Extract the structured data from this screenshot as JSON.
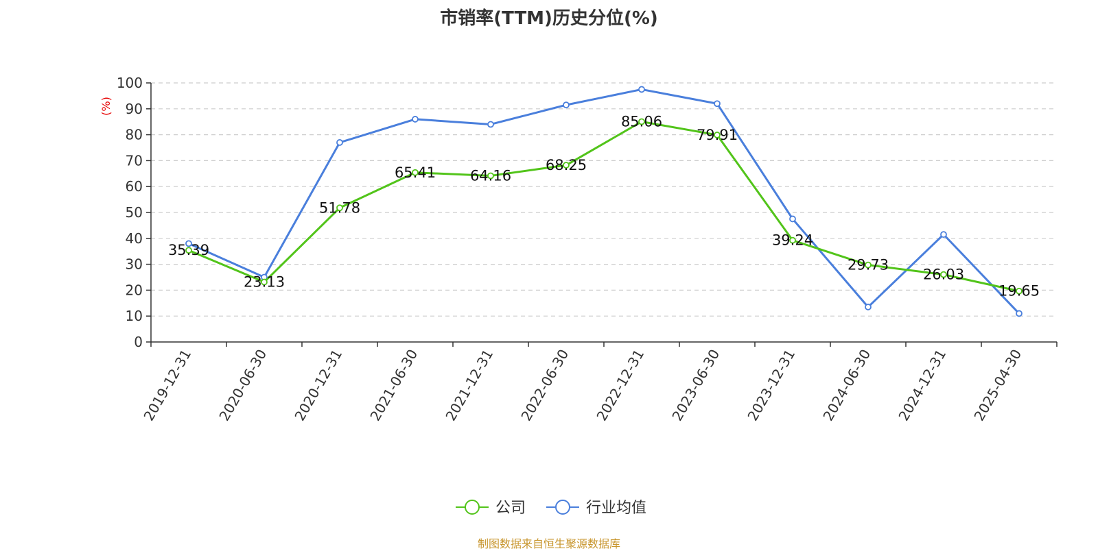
{
  "chart_data": {
    "type": "line",
    "title": "市销率(TTM)历史分位(%)",
    "ylabel": "(%)",
    "xlabel": "",
    "ylim": [
      0,
      100
    ],
    "yticks": [
      0,
      10,
      20,
      30,
      40,
      50,
      60,
      70,
      80,
      90,
      100
    ],
    "categories": [
      "2019-12-31",
      "2020-06-30",
      "2020-12-31",
      "2021-06-30",
      "2021-12-31",
      "2022-06-30",
      "2022-12-31",
      "2023-06-30",
      "2023-12-31",
      "2024-06-30",
      "2024-12-31",
      "2025-04-30"
    ],
    "series": [
      {
        "name": "公司",
        "color": "#52c41a",
        "values": [
          35.39,
          23.13,
          51.78,
          65.41,
          64.16,
          68.25,
          85.06,
          79.91,
          39.24,
          29.73,
          26.03,
          19.65
        ],
        "show_labels": true
      },
      {
        "name": "行业均值",
        "color": "#4a7fdc",
        "values": [
          38.0,
          25.0,
          77.0,
          86.0,
          84.0,
          91.5,
          97.5,
          92.0,
          47.5,
          13.5,
          41.5,
          11.0
        ],
        "show_labels": false
      }
    ],
    "grid": true,
    "legend_position": "bottom-center"
  },
  "footer": {
    "source": "制图数据来自恒生聚源数据库"
  }
}
